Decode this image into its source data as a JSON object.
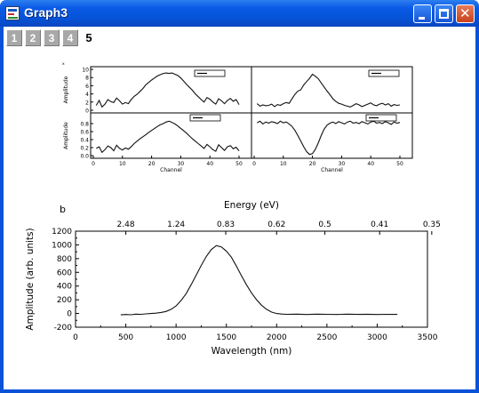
{
  "window": {
    "title": "Graph3",
    "icon": "origin-graph-icon",
    "controls": [
      "minimize-icon",
      "maximize-icon",
      "close-icon"
    ],
    "close_glyph": "✕"
  },
  "layer_tabs": [
    "1",
    "2",
    "3",
    "4",
    "5"
  ],
  "active_tab": "5",
  "chart_data": [
    {
      "type": "line",
      "panel": "top-left",
      "ylabel": "Amplitude",
      "ylim": [
        0,
        10
      ],
      "yticks": [
        "0",
        "2",
        "4",
        "6",
        "8",
        "10"
      ],
      "axis_multiplier_label": "x",
      "xlim": [
        0,
        50
      ],
      "x": [
        1,
        2,
        3,
        4,
        5,
        6,
        7,
        8,
        9,
        10,
        11,
        12,
        13,
        14,
        15,
        16,
        17,
        18,
        19,
        20,
        21,
        22,
        23,
        24,
        25,
        26,
        27,
        28,
        29,
        30,
        31,
        32,
        33,
        34,
        35,
        36,
        37,
        38,
        39,
        40,
        41,
        42,
        43,
        44,
        45,
        46,
        47,
        48,
        49,
        50
      ],
      "values": [
        1.2,
        2.4,
        0.8,
        1.5,
        2.6,
        2.1,
        1.9,
        3.0,
        2.3,
        1.5,
        1.9,
        1.6,
        2.6,
        3.4,
        3.9,
        4.6,
        5.3,
        6.2,
        6.8,
        7.4,
        7.9,
        8.4,
        8.7,
        9.0,
        9.1,
        9.0,
        9.1,
        8.8,
        8.5,
        7.9,
        7.1,
        6.3,
        5.6,
        4.9,
        4.0,
        3.3,
        2.6,
        2.0,
        3.1,
        2.7,
        2.0,
        1.5,
        2.8,
        2.3,
        1.6,
        2.4,
        2.9,
        2.2,
        2.6,
        1.4
      ]
    },
    {
      "type": "line",
      "panel": "top-right",
      "ylim": [
        0,
        10
      ],
      "xlim": [
        0,
        50
      ],
      "x": [
        1,
        2,
        3,
        4,
        5,
        6,
        7,
        8,
        9,
        10,
        11,
        12,
        13,
        14,
        15,
        16,
        17,
        18,
        19,
        20,
        21,
        22,
        23,
        24,
        25,
        26,
        27,
        28,
        29,
        30,
        31,
        32,
        33,
        34,
        35,
        36,
        37,
        38,
        39,
        40,
        41,
        42,
        43,
        44,
        45,
        46,
        47,
        48,
        49,
        50
      ],
      "values": [
        1.6,
        1.0,
        1.3,
        1.1,
        1.2,
        1.5,
        0.9,
        1.4,
        1.2,
        1.6,
        1.9,
        1.7,
        2.8,
        3.9,
        4.7,
        5.0,
        6.2,
        7.0,
        7.8,
        8.8,
        8.3,
        7.7,
        6.7,
        5.7,
        4.7,
        3.8,
        2.8,
        2.2,
        1.7,
        1.5,
        1.2,
        1.0,
        0.8,
        1.2,
        1.6,
        1.3,
        0.9,
        1.2,
        1.5,
        1.8,
        1.3,
        1.1,
        1.5,
        1.7,
        1.3,
        1.6,
        1.0,
        1.4,
        1.2,
        1.3
      ]
    },
    {
      "type": "line",
      "panel": "bottom-left",
      "ylabel": "Amplitude",
      "xlabel": "Channel",
      "ylim": [
        0,
        1
      ],
      "yticks": [
        "0.0",
        "0.2",
        "0.4",
        "0.6",
        "0.8"
      ],
      "xticks": [
        "0",
        "10",
        "20",
        "30",
        "40",
        "50"
      ],
      "xlim": [
        0,
        50
      ],
      "x": [
        1,
        2,
        3,
        4,
        5,
        6,
        7,
        8,
        9,
        10,
        11,
        12,
        13,
        14,
        15,
        16,
        17,
        18,
        19,
        20,
        21,
        22,
        23,
        24,
        25,
        26,
        27,
        28,
        29,
        30,
        31,
        32,
        33,
        34,
        35,
        36,
        37,
        38,
        39,
        40,
        41,
        42,
        43,
        44,
        45,
        46,
        47,
        48,
        49,
        50
      ],
      "values": [
        0.18,
        0.22,
        0.08,
        0.15,
        0.24,
        0.2,
        0.12,
        0.26,
        0.18,
        0.14,
        0.19,
        0.16,
        0.22,
        0.3,
        0.36,
        0.42,
        0.47,
        0.52,
        0.58,
        0.63,
        0.68,
        0.73,
        0.77,
        0.8,
        0.84,
        0.86,
        0.83,
        0.79,
        0.74,
        0.68,
        0.62,
        0.56,
        0.49,
        0.42,
        0.36,
        0.3,
        0.24,
        0.18,
        0.28,
        0.22,
        0.15,
        0.11,
        0.27,
        0.2,
        0.13,
        0.22,
        0.25,
        0.17,
        0.21,
        0.12
      ]
    },
    {
      "type": "line",
      "panel": "bottom-right",
      "xlabel": "Channel",
      "xticks": [
        "0",
        "10",
        "20",
        "30",
        "40",
        "50"
      ],
      "ylim": [
        0,
        1
      ],
      "xlim": [
        0,
        50
      ],
      "x": [
        1,
        2,
        3,
        4,
        5,
        6,
        7,
        8,
        9,
        10,
        11,
        12,
        13,
        14,
        15,
        16,
        17,
        18,
        19,
        20,
        21,
        22,
        23,
        24,
        25,
        26,
        27,
        28,
        29,
        30,
        31,
        32,
        33,
        34,
        35,
        36,
        37,
        38,
        39,
        40,
        41,
        42,
        43,
        44,
        45,
        46,
        47,
        48,
        49,
        50
      ],
      "values": [
        0.82,
        0.86,
        0.79,
        0.84,
        0.81,
        0.85,
        0.83,
        0.8,
        0.86,
        0.82,
        0.84,
        0.79,
        0.73,
        0.63,
        0.5,
        0.36,
        0.22,
        0.1,
        0.03,
        0.05,
        0.16,
        0.32,
        0.5,
        0.66,
        0.76,
        0.81,
        0.84,
        0.8,
        0.85,
        0.82,
        0.79,
        0.84,
        0.86,
        0.81,
        0.83,
        0.8,
        0.85,
        0.82,
        0.79,
        0.84,
        0.86,
        0.81,
        0.83,
        0.8,
        0.85,
        0.82,
        0.78,
        0.84,
        0.81,
        0.83
      ]
    },
    {
      "type": "line",
      "panel": "b",
      "panel_label": "b",
      "title": "",
      "xlabel": "Wavelength (nm)",
      "ylabel": "Amplitude (arb. units)",
      "top_xlabel": "Energy (eV)",
      "xlim": [
        0,
        3500
      ],
      "ylim": [
        -200,
        1200
      ],
      "xticks": [
        "0",
        "500",
        "1000",
        "1500",
        "2000",
        "2500",
        "3000",
        "3500"
      ],
      "yticks": [
        "-200",
        "0",
        "200",
        "400",
        "600",
        "800",
        "1000",
        "1200"
      ],
      "top_ticks": [
        "2.48",
        "1.24",
        "0.83",
        "0.62",
        "0.5",
        "0.41",
        "0.35"
      ],
      "grid": false,
      "x": [
        450,
        500,
        550,
        600,
        650,
        700,
        750,
        800,
        850,
        900,
        950,
        1000,
        1050,
        1100,
        1150,
        1200,
        1250,
        1300,
        1350,
        1400,
        1450,
        1500,
        1550,
        1600,
        1650,
        1700,
        1750,
        1800,
        1850,
        1900,
        1950,
        2000,
        2050,
        2100,
        2200,
        2300,
        2400,
        2500,
        2600,
        2700,
        2800,
        2900,
        3000,
        3100,
        3200
      ],
      "values": [
        -20,
        -15,
        -18,
        -10,
        -12,
        -5,
        0,
        5,
        15,
        30,
        60,
        110,
        190,
        290,
        420,
        560,
        700,
        830,
        930,
        990,
        970,
        910,
        820,
        690,
        550,
        420,
        300,
        200,
        120,
        60,
        20,
        0,
        -8,
        -12,
        -10,
        -14,
        -9,
        -12,
        -15,
        -10,
        -13,
        -11,
        -14,
        -12,
        -13
      ]
    }
  ]
}
